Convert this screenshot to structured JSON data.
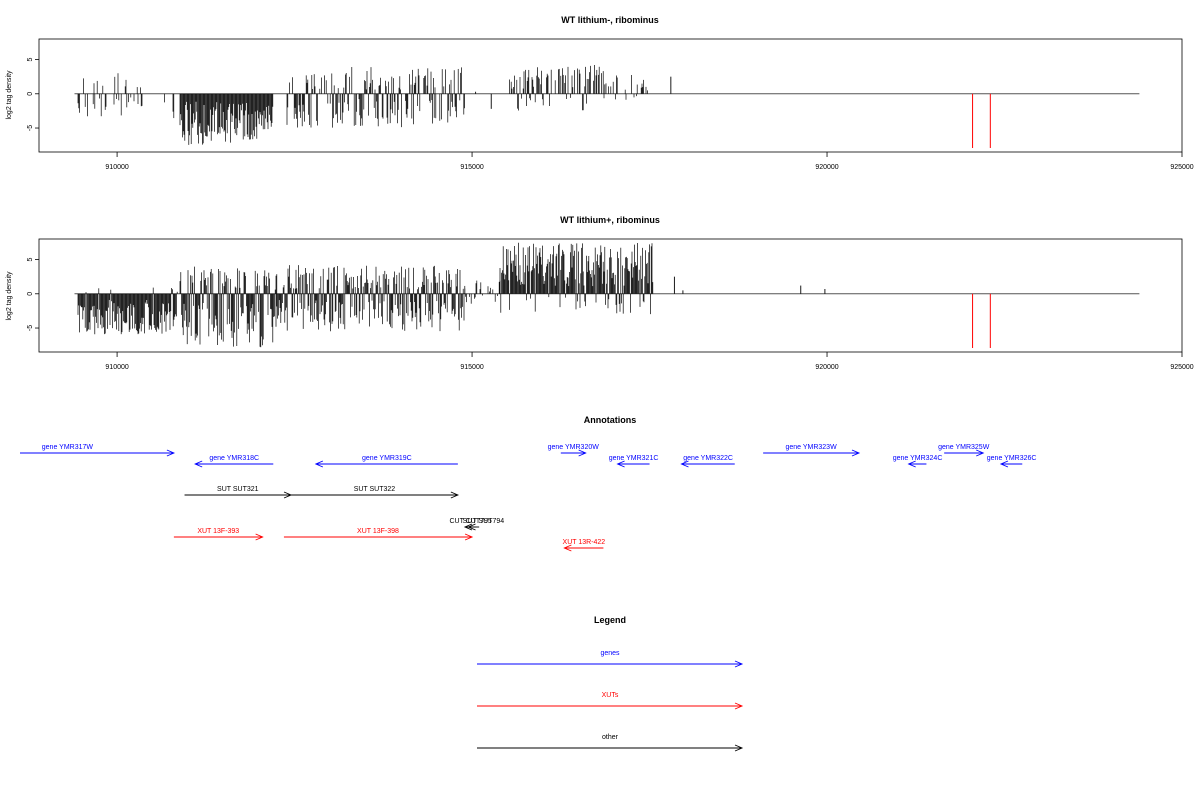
{
  "chart_data": [
    {
      "type": "bar",
      "title": "WT lithium-, ribominus",
      "ylabel": "log2 tag density",
      "xlim": [
        908900,
        925000
      ],
      "ylim": [
        -8.5,
        8
      ],
      "xticks": [
        910000,
        915000,
        920000,
        925000
      ],
      "xtick_labels": [
        "910000",
        "915000",
        "920000",
        "925000"
      ],
      "yticks": [
        -5,
        0,
        5
      ],
      "ytick_labels": [
        "-5",
        "0",
        "5"
      ],
      "baseline_range": [
        909400,
        924400
      ],
      "segments": [
        {
          "from": 909450,
          "to": 910300,
          "min": -3.5,
          "max": 3.0,
          "density": 0.35,
          "posFrac": 0.45
        },
        {
          "from": 910300,
          "to": 910750,
          "min": -2.0,
          "max": 1.0,
          "density": 0.15,
          "posFrac": 0.35
        },
        {
          "from": 910800,
          "to": 910810,
          "min": -4.5,
          "max": 0,
          "density": 1.0,
          "posFrac": 0.0
        },
        {
          "from": 910900,
          "to": 912200,
          "min": -7.5,
          "max": -2.0,
          "density": 1.0,
          "posFrac": 0.0
        },
        {
          "from": 912400,
          "to": 914900,
          "min": -5.0,
          "max": 4.0,
          "density": 0.7,
          "posFrac": 0.42
        },
        {
          "from": 915450,
          "to": 916900,
          "min": -2.5,
          "max": 4.2,
          "density": 0.55,
          "posFrac": 0.8
        },
        {
          "from": 916900,
          "to": 917500,
          "min": -1.0,
          "max": 2.8,
          "density": 0.3,
          "posFrac": 0.9
        }
      ],
      "points": [
        {
          "x": 915050,
          "y": 0.3
        },
        {
          "x": 915270,
          "y": -2.2
        },
        {
          "x": 917800,
          "y": 2.5
        }
      ],
      "markers": [
        922050,
        922300
      ],
      "marker_color": "#ff0000"
    },
    {
      "type": "bar",
      "title": "WT lithium+, ribominus",
      "ylabel": "log2 tag density",
      "xlim": [
        908900,
        925000
      ],
      "ylim": [
        -8.5,
        8
      ],
      "xticks": [
        910000,
        915000,
        920000,
        925000
      ],
      "xtick_labels": [
        "910000",
        "915000",
        "920000",
        "925000"
      ],
      "yticks": [
        -5,
        0,
        5
      ],
      "ytick_labels": [
        "-5",
        "0",
        "5"
      ],
      "baseline_range": [
        909400,
        924400
      ],
      "segments": [
        {
          "from": 909450,
          "to": 910850,
          "min": -6.0,
          "max": 1.0,
          "density": 1.0,
          "posFrac": 0.06
        },
        {
          "from": 910900,
          "to": 912250,
          "min": -8.0,
          "max": 4.0,
          "density": 1.0,
          "posFrac": 0.33
        },
        {
          "from": 912250,
          "to": 914900,
          "min": -5.5,
          "max": 4.2,
          "density": 1.0,
          "posFrac": 0.5
        },
        {
          "from": 914900,
          "to": 915400,
          "min": -1.5,
          "max": 2.0,
          "density": 0.4,
          "posFrac": 0.6
        },
        {
          "from": 915400,
          "to": 917550,
          "min": -3.0,
          "max": 7.5,
          "density": 1.0,
          "posFrac": 0.85
        }
      ],
      "points": [
        {
          "x": 917850,
          "y": 2.5
        },
        {
          "x": 917970,
          "y": 0.5
        },
        {
          "x": 919630,
          "y": 1.2
        },
        {
          "x": 919970,
          "y": 0.7
        }
      ],
      "markers": [
        922050,
        922300
      ],
      "marker_color": "#ff0000"
    }
  ],
  "annotations": {
    "title": "Annotations",
    "xlim": [
      908900,
      925000
    ],
    "items": [
      {
        "label": "gene YMR317W",
        "from": 908500,
        "to": 910800,
        "dir": "+",
        "row": 0,
        "color": "#0000ff",
        "label_x": 909300
      },
      {
        "label": "gene YMR318C",
        "from": 911100,
        "to": 912200,
        "dir": "-",
        "row": 1,
        "color": "#0000ff"
      },
      {
        "label": "gene YMR319C",
        "from": 912800,
        "to": 914800,
        "dir": "-",
        "row": 1,
        "color": "#0000ff"
      },
      {
        "label": "SUT SUT321",
        "from": 910950,
        "to": 912450,
        "dir": "+",
        "row": 2,
        "color": "#000000"
      },
      {
        "label": "SUT SUT322",
        "from": 912450,
        "to": 914800,
        "dir": "+",
        "row": 2,
        "color": "#000000"
      },
      {
        "label": "CUT CUT795",
        "from": 914900,
        "to": 915100,
        "dir": "-",
        "row": 3,
        "color": "#000000",
        "label_x": 914980
      },
      {
        "label": "SUT SUT794",
        "from": 914950,
        "to": 915050,
        "dir": "-",
        "row": 3,
        "color": "#000000",
        "label_x": 915160
      },
      {
        "label": "XUT 13F-393",
        "from": 910800,
        "to": 912050,
        "dir": "+",
        "row": 4,
        "color": "#ff0000"
      },
      {
        "label": "XUT 13F-398",
        "from": 912350,
        "to": 915000,
        "dir": "+",
        "row": 4,
        "color": "#ff0000"
      },
      {
        "label": "gene YMR320W",
        "from": 916250,
        "to": 916600,
        "dir": "+",
        "row": 0,
        "color": "#0000ff"
      },
      {
        "label": "gene YMR321C",
        "from": 917050,
        "to": 917500,
        "dir": "-",
        "row": 1,
        "color": "#0000ff"
      },
      {
        "label": "gene YMR322C",
        "from": 917950,
        "to": 918700,
        "dir": "-",
        "row": 1,
        "color": "#0000ff"
      },
      {
        "label": "XUT 13R-422",
        "from": 916300,
        "to": 916850,
        "dir": "-",
        "row": 5,
        "color": "#ff0000"
      },
      {
        "label": "gene YMR323W",
        "from": 919100,
        "to": 920450,
        "dir": "+",
        "row": 0,
        "color": "#0000ff"
      },
      {
        "label": "gene YMR324C",
        "from": 921150,
        "to": 921400,
        "dir": "-",
        "row": 1,
        "color": "#0000ff"
      },
      {
        "label": "gene YMR325W",
        "from": 921650,
        "to": 922200,
        "dir": "+",
        "row": 0,
        "color": "#0000ff"
      },
      {
        "label": "gene YMR326C",
        "from": 922450,
        "to": 922750,
        "dir": "-",
        "row": 1,
        "color": "#0000ff"
      }
    ]
  },
  "legend": {
    "title": "Legend",
    "items": [
      {
        "label": "genes",
        "color": "#0000ff"
      },
      {
        "label": "XUTs",
        "color": "#ff0000"
      },
      {
        "label": "other",
        "color": "#000000"
      }
    ]
  }
}
